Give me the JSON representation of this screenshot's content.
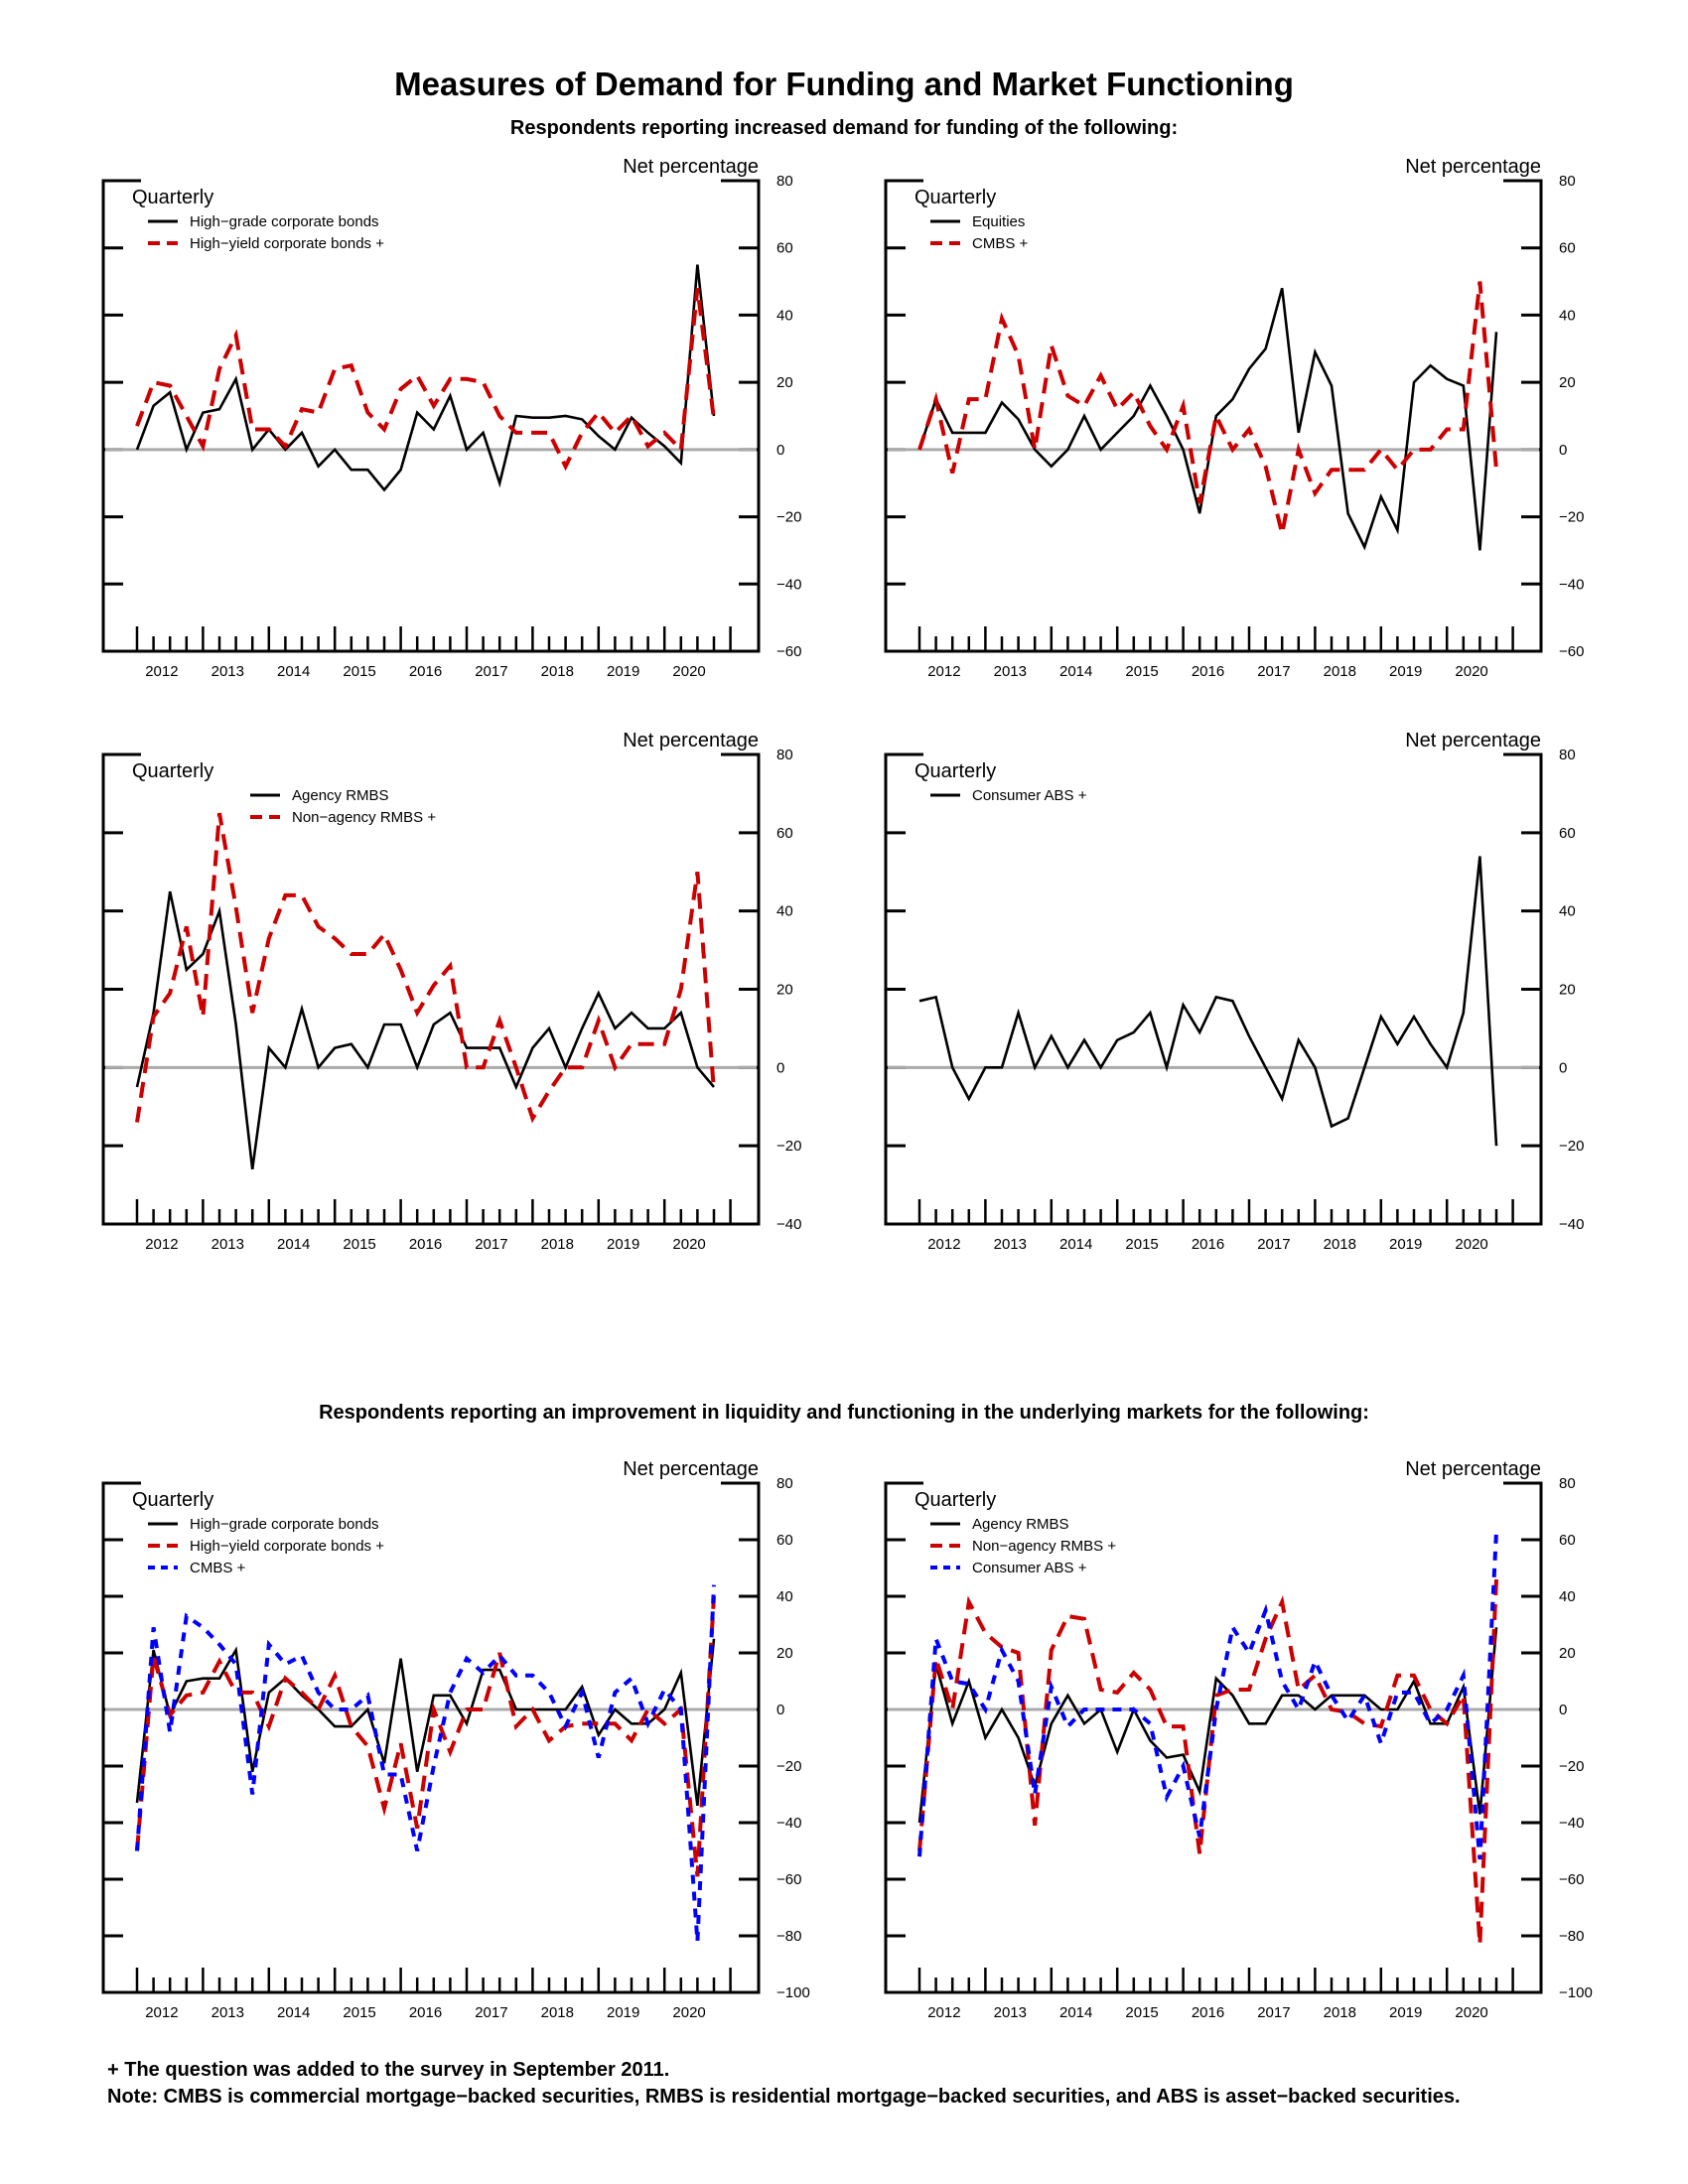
{
  "title": "Measures of Demand for Funding and Market Functioning",
  "section1_subtitle": "Respondents reporting increased demand for funding of the following:",
  "section2_subtitle": "Respondents reporting an improvement in liquidity and functioning in the underlying markets for the following:",
  "footnotes": [
    "+ The question was added to the survey in September 2011.",
    "Note: CMBS is commercial mortgage−backed securities, RMBS is residential mortgage−backed securities, and ABS is asset−backed securities."
  ],
  "colors": {
    "black": "#000000",
    "red": "#cc0000",
    "blue": "#0000ff",
    "zero_line": "#aaaaaa"
  },
  "chart_data": [
    {
      "type": "line",
      "ylabel": "Net percentage",
      "frequency": "Quarterly",
      "ylim": [
        -60,
        80
      ],
      "yticks": [
        "80",
        "60",
        "40",
        "20",
        "0",
        "−20",
        "−40",
        "−60"
      ],
      "xtick_labels": [
        "2012",
        "2013",
        "2014",
        "2015",
        "2016",
        "2017",
        "2018",
        "2019",
        "2020"
      ],
      "x_start": "2011Q3",
      "x_end": "2020Q2",
      "zero_line": true,
      "grid": false,
      "legend": "top-left",
      "series": [
        {
          "name": "High−grade corporate bonds",
          "color": "#000000",
          "style": "solid",
          "values": [
            0,
            13,
            17,
            0,
            11,
            12,
            21,
            0,
            6,
            0,
            5,
            -5,
            0,
            -6,
            -6,
            -12,
            -6,
            11,
            6,
            16,
            0,
            5,
            -10,
            10,
            9.5,
            9.5,
            10,
            9,
            4,
            0,
            9.5,
            5,
            1,
            -4,
            55,
            10
          ]
        },
        {
          "name": "High−yield corporate bonds +",
          "color": "#cc0000",
          "style": "dashed",
          "values": [
            7,
            20,
            19,
            10,
            1,
            24,
            34,
            6,
            6,
            1,
            12,
            11,
            24,
            25,
            11,
            6,
            18,
            22,
            13,
            21,
            21,
            20,
            10,
            5,
            5,
            5,
            -5,
            5,
            11,
            5,
            10,
            1,
            5,
            0,
            48,
            9
          ]
        }
      ]
    },
    {
      "type": "line",
      "ylabel": "Net percentage",
      "frequency": "Quarterly",
      "ylim": [
        -60,
        80
      ],
      "yticks": [
        "80",
        "60",
        "40",
        "20",
        "0",
        "−20",
        "−40",
        "−60"
      ],
      "xtick_labels": [
        "2012",
        "2013",
        "2014",
        "2015",
        "2016",
        "2017",
        "2018",
        "2019",
        "2020"
      ],
      "x_start": "2011Q3",
      "x_end": "2020Q2",
      "zero_line": true,
      "grid": false,
      "legend": "top-left",
      "series": [
        {
          "name": "Equities",
          "color": "#000000",
          "style": "solid",
          "values": [
            0,
            15,
            5,
            5,
            5,
            14,
            9,
            0,
            -5,
            0,
            10,
            0,
            5,
            10,
            19,
            10,
            0,
            -19,
            10,
            15,
            24,
            30,
            48,
            5,
            29,
            19,
            -19,
            -29,
            -14,
            -24,
            20,
            25,
            21,
            19,
            -30,
            35
          ]
        },
        {
          "name": "CMBS +",
          "color": "#cc0000",
          "style": "dashed",
          "values": [
            0,
            15,
            -7,
            15,
            15,
            39,
            28,
            0,
            31,
            16,
            13,
            22,
            12,
            17,
            7,
            0,
            13,
            -16,
            10,
            0,
            6,
            -5,
            -25,
            0,
            -13,
            -6,
            -6,
            -6,
            0,
            -6,
            0,
            0,
            6,
            6,
            50,
            -6
          ]
        }
      ]
    },
    {
      "type": "line",
      "ylabel": "Net percentage",
      "frequency": "Quarterly",
      "ylim": [
        -40,
        80
      ],
      "yticks": [
        "80",
        "60",
        "40",
        "20",
        "0",
        "−20",
        "−40"
      ],
      "xtick_labels": [
        "2012",
        "2013",
        "2014",
        "2015",
        "2016",
        "2017",
        "2018",
        "2019",
        "2020"
      ],
      "x_start": "2011Q3",
      "x_end": "2020Q2",
      "zero_line": true,
      "grid": false,
      "legend": "top-center",
      "series": [
        {
          "name": "Agency RMBS",
          "color": "#000000",
          "style": "solid",
          "values": [
            -5,
            14,
            45,
            25,
            29,
            40,
            11,
            -26,
            5,
            0,
            15,
            0,
            5,
            6,
            0,
            11,
            11,
            0,
            11,
            14,
            5,
            5,
            5,
            -5,
            5,
            10,
            0,
            10,
            19,
            10,
            14,
            10,
            10,
            14,
            0,
            -5
          ]
        },
        {
          "name": "Non−agency RMBS +",
          "color": "#cc0000",
          "style": "dashed",
          "values": [
            -14,
            13,
            19,
            36,
            13,
            65,
            41,
            14,
            33,
            44,
            44,
            36,
            33,
            29,
            29,
            34,
            25,
            14,
            21,
            26,
            0,
            0,
            12,
            0,
            -13,
            -6,
            0,
            0,
            12,
            0,
            6,
            6,
            6,
            20,
            50,
            -6
          ]
        }
      ]
    },
    {
      "type": "line",
      "ylabel": "Net percentage",
      "frequency": "Quarterly",
      "ylim": [
        -40,
        80
      ],
      "yticks": [
        "80",
        "60",
        "40",
        "20",
        "0",
        "−20",
        "−40"
      ],
      "xtick_labels": [
        "2012",
        "2013",
        "2014",
        "2015",
        "2016",
        "2017",
        "2018",
        "2019",
        "2020"
      ],
      "x_start": "2011Q3",
      "x_end": "2020Q2",
      "zero_line": true,
      "grid": false,
      "legend": "top-left",
      "series": [
        {
          "name": "Consumer ABS +",
          "color": "#000000",
          "style": "solid",
          "values": [
            17,
            18,
            0,
            -8,
            0,
            0,
            14,
            0,
            8,
            0,
            7,
            0,
            7,
            9,
            14,
            0,
            16,
            9,
            18,
            17,
            8,
            0,
            -8,
            7,
            0,
            -15,
            -13,
            0,
            13,
            6,
            13,
            6,
            0,
            14,
            54,
            -20
          ]
        }
      ]
    },
    {
      "type": "line",
      "ylabel": "Net percentage",
      "frequency": "Quarterly",
      "ylim": [
        -100,
        80
      ],
      "yticks": [
        "80",
        "60",
        "40",
        "20",
        "0",
        "−20",
        "−40",
        "−60",
        "−80",
        "−100"
      ],
      "xtick_labels": [
        "2012",
        "2013",
        "2014",
        "2015",
        "2016",
        "2017",
        "2018",
        "2019",
        "2020"
      ],
      "x_start": "2011Q3",
      "x_end": "2020Q2",
      "zero_line": true,
      "grid": false,
      "legend": "top-left",
      "series": [
        {
          "name": "High−grade corporate bonds",
          "color": "#000000",
          "style": "solid",
          "values": [
            -33,
            21,
            -2,
            10,
            11,
            11,
            21,
            -22,
            6,
            11,
            5,
            0,
            -6,
            -6,
            0,
            -19,
            18,
            -22,
            5,
            5,
            -5,
            14,
            14,
            0,
            0,
            0,
            0,
            8,
            -9,
            0,
            -5,
            -5,
            0,
            13,
            -34,
            25
          ]
        },
        {
          "name": "High−yield corporate bonds +",
          "color": "#cc0000",
          "style": "dashed",
          "values": [
            -50,
            19,
            -2,
            5,
            6,
            17,
            6,
            6,
            -6,
            11,
            6,
            0,
            12,
            -6,
            -13,
            -35,
            -12,
            -42,
            0,
            -15,
            0,
            0,
            20,
            -6,
            0,
            -11,
            -6,
            -5,
            -5,
            -5,
            -11,
            0,
            -5,
            0,
            -59,
            40
          ]
        },
        {
          "name": "CMBS +",
          "color": "#0000ff",
          "style": "dotted",
          "values": [
            -50,
            29,
            -8,
            33,
            29,
            23,
            16,
            -30,
            23,
            16,
            19,
            6,
            0,
            0,
            5,
            -23,
            -23,
            -50,
            -20,
            6,
            18,
            13,
            19,
            12,
            12,
            6,
            -6,
            6,
            -17,
            6,
            11,
            -5,
            7,
            0,
            -82,
            44
          ]
        }
      ]
    },
    {
      "type": "line",
      "ylabel": "Net percentage",
      "frequency": "Quarterly",
      "ylim": [
        -100,
        80
      ],
      "yticks": [
        "80",
        "60",
        "40",
        "20",
        "0",
        "−20",
        "−40",
        "−60",
        "−80",
        "−100"
      ],
      "xtick_labels": [
        "2012",
        "2013",
        "2014",
        "2015",
        "2016",
        "2017",
        "2018",
        "2019",
        "2020"
      ],
      "x_start": "2011Q3",
      "x_end": "2020Q2",
      "zero_line": true,
      "grid": false,
      "legend": "top-left",
      "series": [
        {
          "name": "Agency RMBS",
          "color": "#000000",
          "style": "solid",
          "values": [
            -40,
            16,
            -5,
            10,
            -10,
            0,
            -10,
            -27,
            -5,
            5,
            -5,
            0,
            -15,
            0,
            -11,
            -17,
            -16,
            -29,
            11,
            5,
            -5,
            -5,
            5,
            5,
            0,
            5,
            5,
            5,
            0,
            0,
            10,
            -5,
            -5,
            8,
            -37,
            29
          ]
        },
        {
          "name": "Non−agency RMBS +",
          "color": "#cc0000",
          "style": "dashed",
          "values": [
            -50,
            18,
            0,
            38,
            27,
            22,
            20,
            -41,
            21,
            33,
            32,
            7,
            6,
            13,
            7,
            -6,
            -6,
            -51,
            5,
            7,
            7,
            25,
            38,
            7,
            12,
            0,
            -1,
            -5,
            -6,
            12,
            12,
            0,
            -5,
            5,
            -83,
            46
          ]
        },
        {
          "name": "Consumer ABS +",
          "color": "#0000ff",
          "style": "dotted",
          "values": [
            -52,
            25,
            10,
            9,
            0,
            21,
            10,
            -30,
            8,
            -6,
            0,
            0,
            0,
            0,
            -5,
            -31,
            -20,
            -45,
            0,
            29,
            20,
            35,
            10,
            0,
            17,
            5,
            -4,
            5,
            -12,
            6,
            6,
            -5,
            0,
            12,
            -53,
            63
          ]
        }
      ]
    }
  ]
}
